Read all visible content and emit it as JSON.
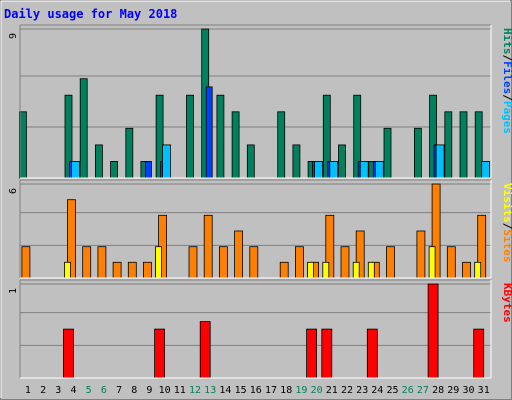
{
  "title": "Daily usage for May 2018",
  "colors": {
    "background": "#c0c0c0",
    "plot_bg": "#c0c0c0",
    "grid": "#808080",
    "title": "#0000ff",
    "hits": "#00805c",
    "files": "#0040ff",
    "pages": "#00c0ff",
    "visits": "#ff8000",
    "sites": "#ffff00",
    "kbytes": "#ff0000",
    "weekend_label": "#00805c",
    "day_label": "#000000"
  },
  "chart_data": [
    {
      "type": "bar",
      "name": "hits-files-pages",
      "categories": [
        "1",
        "2",
        "3",
        "4",
        "5",
        "6",
        "7",
        "8",
        "9",
        "10",
        "11",
        "12",
        "13",
        "14",
        "15",
        "16",
        "17",
        "18",
        "19",
        "20",
        "21",
        "22",
        "23",
        "24",
        "25",
        "26",
        "27",
        "28",
        "29",
        "30",
        "31"
      ],
      "weekend_days": [
        "5",
        "6",
        "12",
        "13",
        "19",
        "20",
        "26",
        "27"
      ],
      "ymax_label": "9",
      "ylim": [
        0,
        9
      ],
      "axis_label": [
        "Pages",
        "/",
        "Files",
        "/",
        "Hits"
      ],
      "series": [
        {
          "name": "Hits",
          "values": [
            4,
            0,
            0,
            5,
            6,
            2,
            1,
            3,
            1,
            5,
            0,
            5,
            9,
            5,
            4,
            2,
            0,
            4,
            2,
            1,
            5,
            2,
            5,
            1,
            3,
            0,
            3,
            5,
            4,
            4,
            4
          ]
        },
        {
          "name": "Files",
          "values": [
            0,
            0,
            0,
            1,
            0,
            0,
            0,
            0,
            1,
            1,
            0,
            0,
            5.5,
            0,
            0,
            0,
            0,
            0,
            0,
            1,
            1,
            0,
            1,
            1,
            0,
            0,
            0,
            2,
            0,
            0,
            0
          ]
        },
        {
          "name": "Pages",
          "values": [
            0,
            0,
            0,
            1,
            0,
            0,
            0,
            0,
            0,
            2,
            0,
            0,
            0,
            0,
            0,
            0,
            0,
            0,
            0,
            1,
            1,
            0,
            1,
            1,
            0,
            0,
            0,
            2,
            0,
            0,
            1
          ]
        }
      ]
    },
    {
      "type": "bar",
      "name": "visits-sites",
      "categories": [
        "1",
        "2",
        "3",
        "4",
        "5",
        "6",
        "7",
        "8",
        "9",
        "10",
        "11",
        "12",
        "13",
        "14",
        "15",
        "16",
        "17",
        "18",
        "19",
        "20",
        "21",
        "22",
        "23",
        "24",
        "25",
        "26",
        "27",
        "28",
        "29",
        "30",
        "31"
      ],
      "ymax_label": "6",
      "ylim": [
        0,
        6
      ],
      "axis_label": [
        "Sites",
        "/",
        "Visits"
      ],
      "series": [
        {
          "name": "Visits",
          "values": [
            2,
            0,
            0,
            5,
            2,
            2,
            1,
            1,
            1,
            4,
            0,
            2,
            4,
            2,
            3,
            2,
            0,
            1,
            2,
            1,
            4,
            2,
            3,
            1,
            2,
            0,
            3,
            6,
            2,
            1,
            4
          ]
        },
        {
          "name": "Sites",
          "values": [
            0,
            0,
            0,
            1,
            0,
            0,
            0,
            0,
            0,
            2,
            0,
            0,
            0,
            0,
            0,
            0,
            0,
            0,
            0,
            1,
            1,
            0,
            1,
            1,
            0,
            0,
            0,
            2,
            0,
            0,
            1
          ]
        }
      ]
    },
    {
      "type": "bar",
      "name": "kbytes",
      "categories": [
        "1",
        "2",
        "3",
        "4",
        "5",
        "6",
        "7",
        "8",
        "9",
        "10",
        "11",
        "12",
        "13",
        "14",
        "15",
        "16",
        "17",
        "18",
        "19",
        "20",
        "21",
        "22",
        "23",
        "24",
        "25",
        "26",
        "27",
        "28",
        "29",
        "30",
        "31"
      ],
      "ymax_label": "1",
      "ylim": [
        0,
        1
      ],
      "axis_label": [
        "KBytes"
      ],
      "series": [
        {
          "name": "KBytes",
          "values": [
            0,
            0,
            0,
            0.52,
            0,
            0,
            0,
            0,
            0,
            0.52,
            0,
            0,
            0.6,
            0,
            0,
            0,
            0,
            0,
            0,
            0.52,
            0.52,
            0,
            0,
            0.52,
            0,
            0,
            0,
            1,
            0,
            0,
            0.52
          ]
        }
      ]
    }
  ]
}
